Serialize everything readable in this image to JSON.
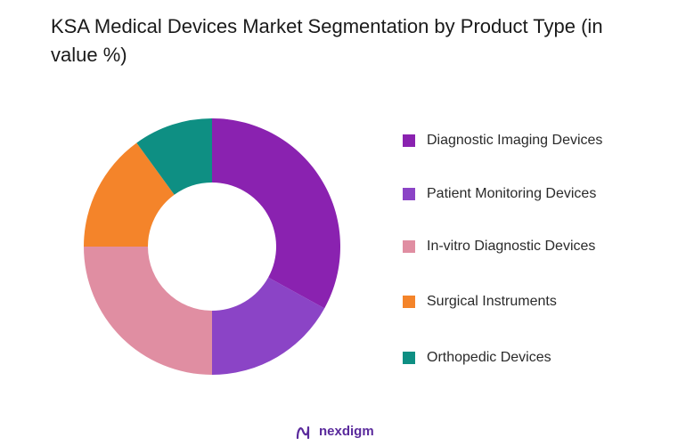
{
  "title": "KSA Medical Devices Market Segmentation by Product Type (in value %)",
  "chart_data": {
    "type": "pie",
    "donut": true,
    "title": "KSA Medical Devices Market Segmentation by Product Type (in value %)",
    "legend_position": "right",
    "series": [
      {
        "name": "Diagnostic Imaging Devices",
        "value": 33,
        "color": "#8a22b0"
      },
      {
        "name": "Patient Monitoring Devices",
        "value": 17,
        "color": "#8b44c6"
      },
      {
        "name": "In-vitro Diagnostic Devices",
        "value": 25,
        "color": "#e08ea2"
      },
      {
        "name": "Surgical Instruments",
        "value": 15,
        "color": "#f4842a"
      },
      {
        "name": "Orthopedic Devices",
        "value": 10,
        "color": "#0e8f83"
      }
    ]
  },
  "brand": {
    "name": "nexdigm",
    "icon": "nexdigm-logo-icon",
    "color": "#5a2a9c"
  }
}
